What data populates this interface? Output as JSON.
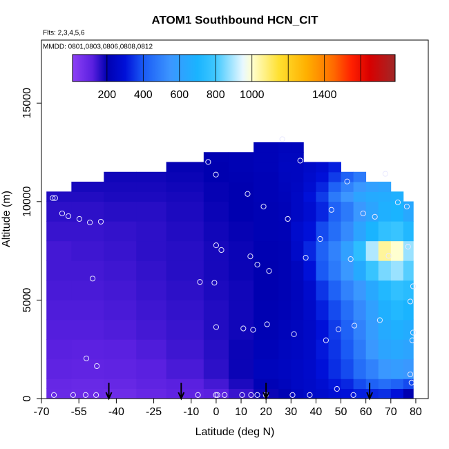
{
  "chart_data": {
    "type": "curtain",
    "title": "ATOM1 Southbound HCN_CIT",
    "subtitle": "Flts: 2,3,4,5,6",
    "annotation": "MMDD: 0801,0803,0806,0808,0812",
    "xlabel": "Latitude (deg N)",
    "ylabel": "Altitude (m)",
    "xlim": [
      -70,
      85
    ],
    "ylim": [
      0,
      18200
    ],
    "xticks": [
      -70,
      -55,
      -40,
      -25,
      -10,
      0,
      10,
      20,
      30,
      40,
      50,
      60,
      70,
      80
    ],
    "yticks": [
      0,
      5000,
      10000,
      15000
    ],
    "colorbar": {
      "range": [
        10,
        1790
      ],
      "ticks": [
        200,
        400,
        600,
        800,
        1000,
        1400
      ],
      "breaks": [
        200,
        400,
        600,
        800,
        1000,
        1200,
        1400,
        1600
      ],
      "colorscale": [
        [
          10,
          "#8d40f5"
        ],
        [
          120,
          "#5a20e0"
        ],
        [
          200,
          "#0000b0"
        ],
        [
          300,
          "#0010d8"
        ],
        [
          400,
          "#1a5af5"
        ],
        [
          550,
          "#3c96ff"
        ],
        [
          700,
          "#1ab4ff"
        ],
        [
          800,
          "#40c8ff"
        ],
        [
          950,
          "#e8f8ff"
        ],
        [
          1000,
          "#ffffd0"
        ],
        [
          1150,
          "#ffe030"
        ],
        [
          1300,
          "#ffb000"
        ],
        [
          1450,
          "#ff6a00"
        ],
        [
          1550,
          "#ff2000"
        ],
        [
          1650,
          "#d80000"
        ],
        [
          1790,
          "#a02828"
        ]
      ]
    },
    "field": {
      "lat_edges": [
        -68,
        -58,
        -45,
        -32,
        -20,
        -5,
        5,
        15,
        25,
        30,
        35,
        40,
        45,
        50,
        55,
        60,
        65,
        70,
        75,
        79
      ],
      "alt_edges": [
        0,
        500,
        1000,
        2000,
        3000,
        4000,
        5000,
        6000,
        7000,
        8000,
        9000,
        10000,
        10500,
        11000,
        11500,
        12000,
        12500,
        13000
      ],
      "values": [
        [
          90,
          95,
          110,
          120,
          125,
          130,
          135,
          140,
          140,
          150,
          160,
          170
        ],
        [
          85,
          90,
          105,
          115,
          125,
          130,
          135,
          140,
          145,
          150,
          160,
          170,
          180
        ],
        [
          80,
          95,
          110,
          120,
          130,
          135,
          140,
          145,
          150,
          155,
          165,
          175,
          180,
          185
        ],
        [
          95,
          110,
          120,
          130,
          140,
          145,
          150,
          155,
          160,
          160,
          165,
          175,
          180,
          185
        ],
        [
          110,
          120,
          135,
          145,
          150,
          155,
          160,
          165,
          165,
          170,
          175,
          180,
          185,
          190,
          195
        ],
        [
          120,
          140,
          160,
          165,
          170,
          170,
          175,
          180,
          180,
          185,
          190,
          195,
          195,
          200,
          200,
          205
        ],
        [
          150,
          175,
          190,
          190,
          185,
          185,
          185,
          190,
          190,
          195,
          200,
          200,
          200,
          205,
          210,
          210
        ],
        [
          190,
          215,
          230,
          220,
          210,
          205,
          200,
          200,
          205,
          210,
          210,
          215,
          215,
          215,
          220,
          220,
          220
        ],
        [
          210,
          230,
          240,
          235,
          225,
          215,
          210,
          210,
          210,
          215,
          220,
          225,
          230,
          235,
          240,
          235,
          230
        ],
        [
          240,
          250,
          250,
          245,
          235,
          230,
          230,
          235,
          260,
          270,
          250,
          250,
          245,
          240,
          240,
          235,
          230
        ],
        [
          260,
          260,
          265,
          260,
          255,
          260,
          270,
          300,
          330,
          300,
          280,
          300,
          280,
          270,
          260
        ],
        [
          270,
          280,
          300,
          310,
          300,
          320,
          350,
          400,
          420,
          380,
          330,
          360,
          330,
          300,
          280
        ],
        [
          290,
          310,
          340,
          350,
          360,
          380,
          420,
          480,
          500,
          450,
          420,
          480,
          420,
          360,
          320
        ],
        [
          300,
          330,
          380,
          400,
          420,
          450,
          500,
          560,
          600,
          520,
          480,
          550,
          500,
          420
        ],
        [
          320,
          380,
          450,
          480,
          500,
          520,
          560,
          650,
          750,
          620,
          560,
          620,
          560,
          480
        ],
        [
          330,
          420,
          500,
          560,
          580,
          600,
          640,
          780,
          900,
          700,
          620,
          650,
          600
        ],
        [
          340,
          450,
          560,
          620,
          650,
          680,
          720,
          850,
          1050,
          760,
          680,
          660,
          620
        ],
        [
          300,
          420,
          580,
          640,
          680,
          720,
          760,
          880,
          1000,
          780,
          700,
          680
        ],
        [
          200,
          380,
          560,
          620,
          660,
          700,
          740,
          820,
          880,
          720,
          640
        ]
      ]
    },
    "points": {
      "lat": [
        -65.5,
        -64.5,
        -61.7,
        -59.2,
        -54.8,
        -50.6,
        -46.2,
        -49.5,
        -52,
        -47.8,
        -65,
        -57.3,
        -52.3,
        -48.1,
        -3.2,
        -0.1,
        12.6,
        19,
        28.7,
        21.2,
        13.7,
        16.5,
        0,
        2.1,
        -6.5,
        -0.7,
        0,
        10.9,
        14.8,
        20.4,
        26.5,
        33.7,
        52.5,
        67.8,
        72.8,
        76.4,
        58.9,
        63.6,
        46.2,
        41.7,
        35.9,
        53.9,
        69.1,
        76.9,
        78.9,
        77.8,
        65.6,
        55.4,
        49,
        44,
        31.2,
        78.9,
        78.6,
        77.8,
        78.3,
        48.4,
        -7.3,
        -0.1,
        0.5,
        3.4,
        10.4,
        14,
        16.5,
        19.9,
        30.6,
        37.5,
        55
      ],
      "alt": [
        10180,
        10180,
        9400,
        9260,
        9120,
        8940,
        8980,
        6090,
        2040,
        1650,
        180,
        180,
        180,
        180,
        12010,
        11370,
        10390,
        9750,
        9120,
        6480,
        7220,
        6800,
        7780,
        7540,
        5920,
        5880,
        3630,
        3560,
        3490,
        3770,
        13170,
        12080,
        11020,
        11410,
        9960,
        9750,
        9400,
        9230,
        9580,
        8100,
        7150,
        7080,
        7250,
        7710,
        5700,
        4930,
        3980,
        3700,
        3520,
        2960,
        3270,
        3350,
        2960,
        1230,
        810,
        490,
        180,
        180,
        180,
        180,
        180,
        180,
        180,
        180,
        180,
        180,
        180
      ]
    },
    "arrows_lat": [
      -43,
      -14,
      20,
      61.5
    ]
  }
}
